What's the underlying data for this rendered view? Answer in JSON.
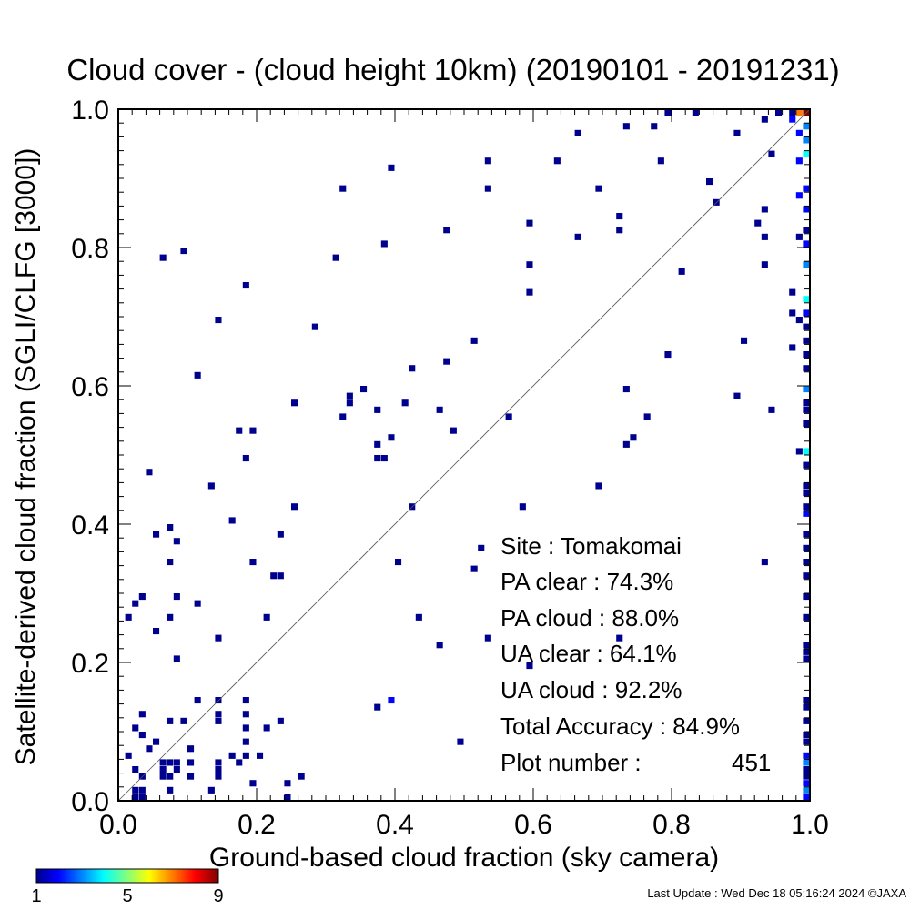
{
  "chart_data": {
    "type": "heatmap",
    "title": "Cloud cover - (cloud height 10km)  (20190101 - 20191231)",
    "xlabel": "Ground-based cloud fraction (sky camera)",
    "ylabel": "Satellite-derived cloud fraction (SGLI/CLFG [3000])",
    "xlim": [
      0.0,
      1.0
    ],
    "ylim": [
      0.0,
      1.0
    ],
    "xticks": [
      "0.0",
      "0.2",
      "0.4",
      "0.6",
      "0.8",
      "1.0"
    ],
    "yticks": [
      "0.0",
      "0.2",
      "0.4",
      "0.6",
      "0.8",
      "1.0"
    ],
    "bin_size": 0.01,
    "diagonal_line": true,
    "colorbar": {
      "min": 1,
      "max": 9,
      "ticks": [
        "1",
        "5",
        "9"
      ]
    },
    "cells": [
      [
        0.79,
        0.99,
        1
      ],
      [
        0.83,
        0.99,
        1
      ],
      [
        0.95,
        0.99,
        1
      ],
      [
        0.97,
        0.99,
        1
      ],
      [
        0.98,
        0.99,
        7
      ],
      [
        0.99,
        0.99,
        9
      ],
      [
        0.66,
        0.96,
        1
      ],
      [
        0.73,
        0.97,
        1
      ],
      [
        0.77,
        0.97,
        1
      ],
      [
        0.93,
        0.98,
        1
      ],
      [
        0.97,
        0.98,
        2
      ],
      [
        0.99,
        0.97,
        3
      ],
      [
        0.89,
        0.96,
        1
      ],
      [
        0.98,
        0.96,
        2
      ],
      [
        0.99,
        0.95,
        3
      ],
      [
        0.39,
        0.91,
        1
      ],
      [
        0.53,
        0.92,
        1
      ],
      [
        0.63,
        0.92,
        1
      ],
      [
        0.78,
        0.92,
        1
      ],
      [
        0.94,
        0.93,
        1
      ],
      [
        0.98,
        0.92,
        2
      ],
      [
        0.99,
        0.93,
        4
      ],
      [
        0.32,
        0.88,
        1
      ],
      [
        0.53,
        0.88,
        1
      ],
      [
        0.69,
        0.88,
        1
      ],
      [
        0.85,
        0.89,
        1
      ],
      [
        0.98,
        0.87,
        2
      ],
      [
        0.99,
        0.88,
        2
      ],
      [
        0.86,
        0.86,
        1
      ],
      [
        0.72,
        0.84,
        1
      ],
      [
        0.93,
        0.85,
        1
      ],
      [
        0.99,
        0.85,
        2
      ],
      [
        0.47,
        0.82,
        1
      ],
      [
        0.59,
        0.83,
        1
      ],
      [
        0.72,
        0.82,
        1
      ],
      [
        0.92,
        0.83,
        1
      ],
      [
        0.99,
        0.82,
        1
      ],
      [
        0.38,
        0.8,
        1
      ],
      [
        0.66,
        0.81,
        1
      ],
      [
        0.93,
        0.81,
        1
      ],
      [
        0.98,
        0.81,
        1
      ],
      [
        0.99,
        0.8,
        2
      ],
      [
        0.06,
        0.78,
        1
      ],
      [
        0.09,
        0.79,
        1
      ],
      [
        0.31,
        0.78,
        1
      ],
      [
        0.59,
        0.77,
        1
      ],
      [
        0.81,
        0.76,
        1
      ],
      [
        0.93,
        0.77,
        1
      ],
      [
        0.99,
        0.77,
        3
      ],
      [
        0.18,
        0.74,
        1
      ],
      [
        0.59,
        0.73,
        1
      ],
      [
        0.97,
        0.73,
        1
      ],
      [
        0.99,
        0.72,
        4
      ],
      [
        0.99,
        0.7,
        2
      ],
      [
        0.14,
        0.69,
        1
      ],
      [
        0.28,
        0.68,
        1
      ],
      [
        0.97,
        0.7,
        1
      ],
      [
        0.98,
        0.69,
        1
      ],
      [
        0.99,
        0.68,
        1
      ],
      [
        0.51,
        0.66,
        1
      ],
      [
        0.79,
        0.64,
        1
      ],
      [
        0.9,
        0.66,
        1
      ],
      [
        0.97,
        0.65,
        1
      ],
      [
        0.99,
        0.66,
        1
      ],
      [
        0.99,
        0.64,
        1
      ],
      [
        0.47,
        0.63,
        1
      ],
      [
        0.11,
        0.61,
        1
      ],
      [
        0.42,
        0.62,
        1
      ],
      [
        0.99,
        0.62,
        1
      ],
      [
        0.35,
        0.59,
        1
      ],
      [
        0.33,
        0.58,
        1
      ],
      [
        0.73,
        0.59,
        1
      ],
      [
        0.89,
        0.58,
        1
      ],
      [
        0.99,
        0.59,
        3
      ],
      [
        0.25,
        0.57,
        1
      ],
      [
        0.33,
        0.57,
        1
      ],
      [
        0.41,
        0.57,
        1
      ],
      [
        0.99,
        0.57,
        1
      ],
      [
        0.37,
        0.56,
        1
      ],
      [
        0.46,
        0.56,
        1
      ],
      [
        0.94,
        0.56,
        1
      ],
      [
        0.99,
        0.56,
        1
      ],
      [
        0.32,
        0.55,
        1
      ],
      [
        0.56,
        0.55,
        1
      ],
      [
        0.76,
        0.55,
        1
      ],
      [
        0.99,
        0.54,
        1
      ],
      [
        0.17,
        0.53,
        1
      ],
      [
        0.19,
        0.53,
        1
      ],
      [
        0.48,
        0.53,
        1
      ],
      [
        0.39,
        0.52,
        1
      ],
      [
        0.74,
        0.52,
        1
      ],
      [
        0.37,
        0.51,
        1
      ],
      [
        0.73,
        0.51,
        1
      ],
      [
        0.98,
        0.5,
        1
      ],
      [
        0.99,
        0.5,
        4
      ],
      [
        0.18,
        0.49,
        1
      ],
      [
        0.37,
        0.49,
        1
      ],
      [
        0.38,
        0.49,
        1
      ],
      [
        0.99,
        0.48,
        1
      ],
      [
        0.04,
        0.47,
        1
      ],
      [
        0.13,
        0.45,
        1
      ],
      [
        0.69,
        0.45,
        1
      ],
      [
        0.99,
        0.45,
        1
      ],
      [
        0.99,
        0.44,
        1
      ],
      [
        0.25,
        0.42,
        1
      ],
      [
        0.42,
        0.42,
        1
      ],
      [
        0.58,
        0.42,
        1
      ],
      [
        0.99,
        0.42,
        1
      ],
      [
        0.99,
        0.41,
        2
      ],
      [
        0.16,
        0.4,
        1
      ],
      [
        0.07,
        0.39,
        1
      ],
      [
        0.05,
        0.38,
        1
      ],
      [
        0.08,
        0.37,
        1
      ],
      [
        0.23,
        0.38,
        1
      ],
      [
        0.99,
        0.38,
        1
      ],
      [
        0.52,
        0.36,
        1
      ],
      [
        0.99,
        0.36,
        1
      ],
      [
        0.07,
        0.34,
        1
      ],
      [
        0.19,
        0.34,
        1
      ],
      [
        0.4,
        0.34,
        1
      ],
      [
        0.51,
        0.33,
        1
      ],
      [
        0.93,
        0.34,
        1
      ],
      [
        0.99,
        0.34,
        1
      ],
      [
        0.22,
        0.32,
        1
      ],
      [
        0.23,
        0.32,
        1
      ],
      [
        0.99,
        0.32,
        1
      ],
      [
        0.03,
        0.29,
        1
      ],
      [
        0.08,
        0.29,
        1
      ],
      [
        0.02,
        0.28,
        1
      ],
      [
        0.11,
        0.28,
        1
      ],
      [
        0.99,
        0.29,
        1
      ],
      [
        0.01,
        0.26,
        1
      ],
      [
        0.07,
        0.26,
        1
      ],
      [
        0.21,
        0.26,
        1
      ],
      [
        0.43,
        0.26,
        1
      ],
      [
        0.99,
        0.26,
        1
      ],
      [
        0.05,
        0.24,
        1
      ],
      [
        0.14,
        0.23,
        1
      ],
      [
        0.53,
        0.23,
        1
      ],
      [
        0.72,
        0.23,
        1
      ],
      [
        0.46,
        0.22,
        1
      ],
      [
        0.99,
        0.22,
        1
      ],
      [
        0.99,
        0.21,
        1
      ],
      [
        0.08,
        0.2,
        1
      ],
      [
        0.59,
        0.19,
        1
      ],
      [
        0.99,
        0.2,
        1
      ],
      [
        0.11,
        0.14,
        1
      ],
      [
        0.14,
        0.14,
        1
      ],
      [
        0.18,
        0.14,
        1
      ],
      [
        0.39,
        0.14,
        2
      ],
      [
        0.37,
        0.13,
        1
      ],
      [
        0.99,
        0.14,
        1
      ],
      [
        0.99,
        0.13,
        1
      ],
      [
        0.03,
        0.12,
        1
      ],
      [
        0.07,
        0.11,
        1
      ],
      [
        0.09,
        0.11,
        1
      ],
      [
        0.14,
        0.12,
        1
      ],
      [
        0.18,
        0.12,
        1
      ],
      [
        0.23,
        0.11,
        1
      ],
      [
        0.99,
        0.11,
        1
      ],
      [
        0.02,
        0.1,
        1
      ],
      [
        0.03,
        0.09,
        1
      ],
      [
        0.05,
        0.08,
        1
      ],
      [
        0.14,
        0.11,
        1
      ],
      [
        0.18,
        0.1,
        1
      ],
      [
        0.21,
        0.1,
        1
      ],
      [
        0.99,
        0.09,
        1
      ],
      [
        0.04,
        0.07,
        1
      ],
      [
        0.1,
        0.07,
        1
      ],
      [
        0.18,
        0.08,
        1
      ],
      [
        0.49,
        0.08,
        1
      ],
      [
        0.99,
        0.08,
        1
      ],
      [
        0.01,
        0.06,
        1
      ],
      [
        0.06,
        0.05,
        1
      ],
      [
        0.07,
        0.05,
        1
      ],
      [
        0.08,
        0.05,
        1
      ],
      [
        0.1,
        0.05,
        1
      ],
      [
        0.14,
        0.05,
        1
      ],
      [
        0.16,
        0.06,
        1
      ],
      [
        0.17,
        0.05,
        1
      ],
      [
        0.18,
        0.06,
        1
      ],
      [
        0.2,
        0.06,
        1
      ],
      [
        0.99,
        0.06,
        2
      ],
      [
        0.02,
        0.04,
        1
      ],
      [
        0.03,
        0.03,
        1
      ],
      [
        0.06,
        0.04,
        1
      ],
      [
        0.08,
        0.04,
        1
      ],
      [
        0.14,
        0.04,
        1
      ],
      [
        0.99,
        0.05,
        3
      ],
      [
        0.99,
        0.04,
        1
      ],
      [
        0.06,
        0.03,
        1
      ],
      [
        0.07,
        0.03,
        1
      ],
      [
        0.1,
        0.03,
        1
      ],
      [
        0.14,
        0.03,
        1
      ],
      [
        0.19,
        0.02,
        1
      ],
      [
        0.24,
        0.02,
        1
      ],
      [
        0.26,
        0.03,
        1
      ],
      [
        0.99,
        0.03,
        1
      ],
      [
        0.99,
        0.02,
        2
      ],
      [
        0.02,
        0.01,
        1
      ],
      [
        0.03,
        0.01,
        1
      ],
      [
        0.07,
        0.01,
        1
      ],
      [
        0.13,
        0.01,
        1
      ],
      [
        0.99,
        0.01,
        3
      ],
      [
        0.02,
        0.0,
        1
      ],
      [
        0.03,
        0.0,
        1
      ],
      [
        0.24,
        0.0,
        1
      ],
      [
        0.99,
        0.0,
        2
      ]
    ]
  },
  "stats": {
    "site": "Site : Tomakomai",
    "pa_clear": "PA clear :  74.3%",
    "pa_cloud": "PA cloud :  88.0%",
    "ua_clear": "UA clear :  64.1%",
    "ua_cloud": "UA cloud :  92.2%",
    "total_accuracy": "Total Accuracy :  84.9%",
    "plot_number_label": "Plot number :",
    "plot_number_value": "451"
  },
  "footer": "Last Update : Wed Dec 18 05:16:24 2024  ©JAXA"
}
